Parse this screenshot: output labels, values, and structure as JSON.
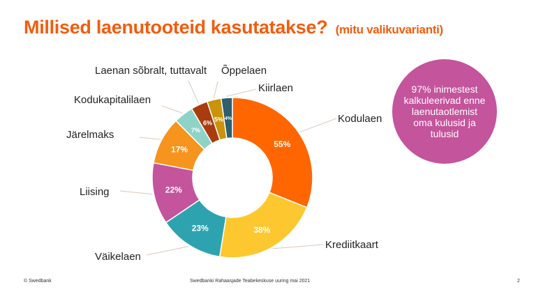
{
  "title": {
    "main": "Millised laenutooteid kasutatakse?",
    "sub": "(mitu valikuvarianti)"
  },
  "callout": {
    "text": "97% inimestest kalkuleerivad enne laenutaotlemist oma kulusid ja tulusid"
  },
  "footer": {
    "left": "© Swedbank",
    "center": "Swedbanki Rahaasjade Teabekeskuse uuring mai 2021",
    "page": "2"
  },
  "chart_data": {
    "type": "pie",
    "donut": true,
    "categories": [
      "Kodulaen",
      "Krediitkaart",
      "Väikelaen",
      "Liising",
      "Järelmaks",
      "Kodukapitalilaen",
      "Laenan sõbralt, tuttavalt",
      "Õppelaen",
      "Kiirlaen"
    ],
    "values": [
      55,
      38,
      23,
      22,
      17,
      7,
      6,
      5,
      4
    ],
    "value_labels": [
      "55%",
      "38%",
      "23%",
      "22%",
      "17%",
      "7%",
      "6%",
      "5%",
      "4%"
    ],
    "colors": [
      "#ff6600",
      "#fdc82f",
      "#2ea3b0",
      "#c4549b",
      "#f7941d",
      "#8ed3c8",
      "#a83c0f",
      "#c9930a",
      "#2d5f6e"
    ]
  }
}
